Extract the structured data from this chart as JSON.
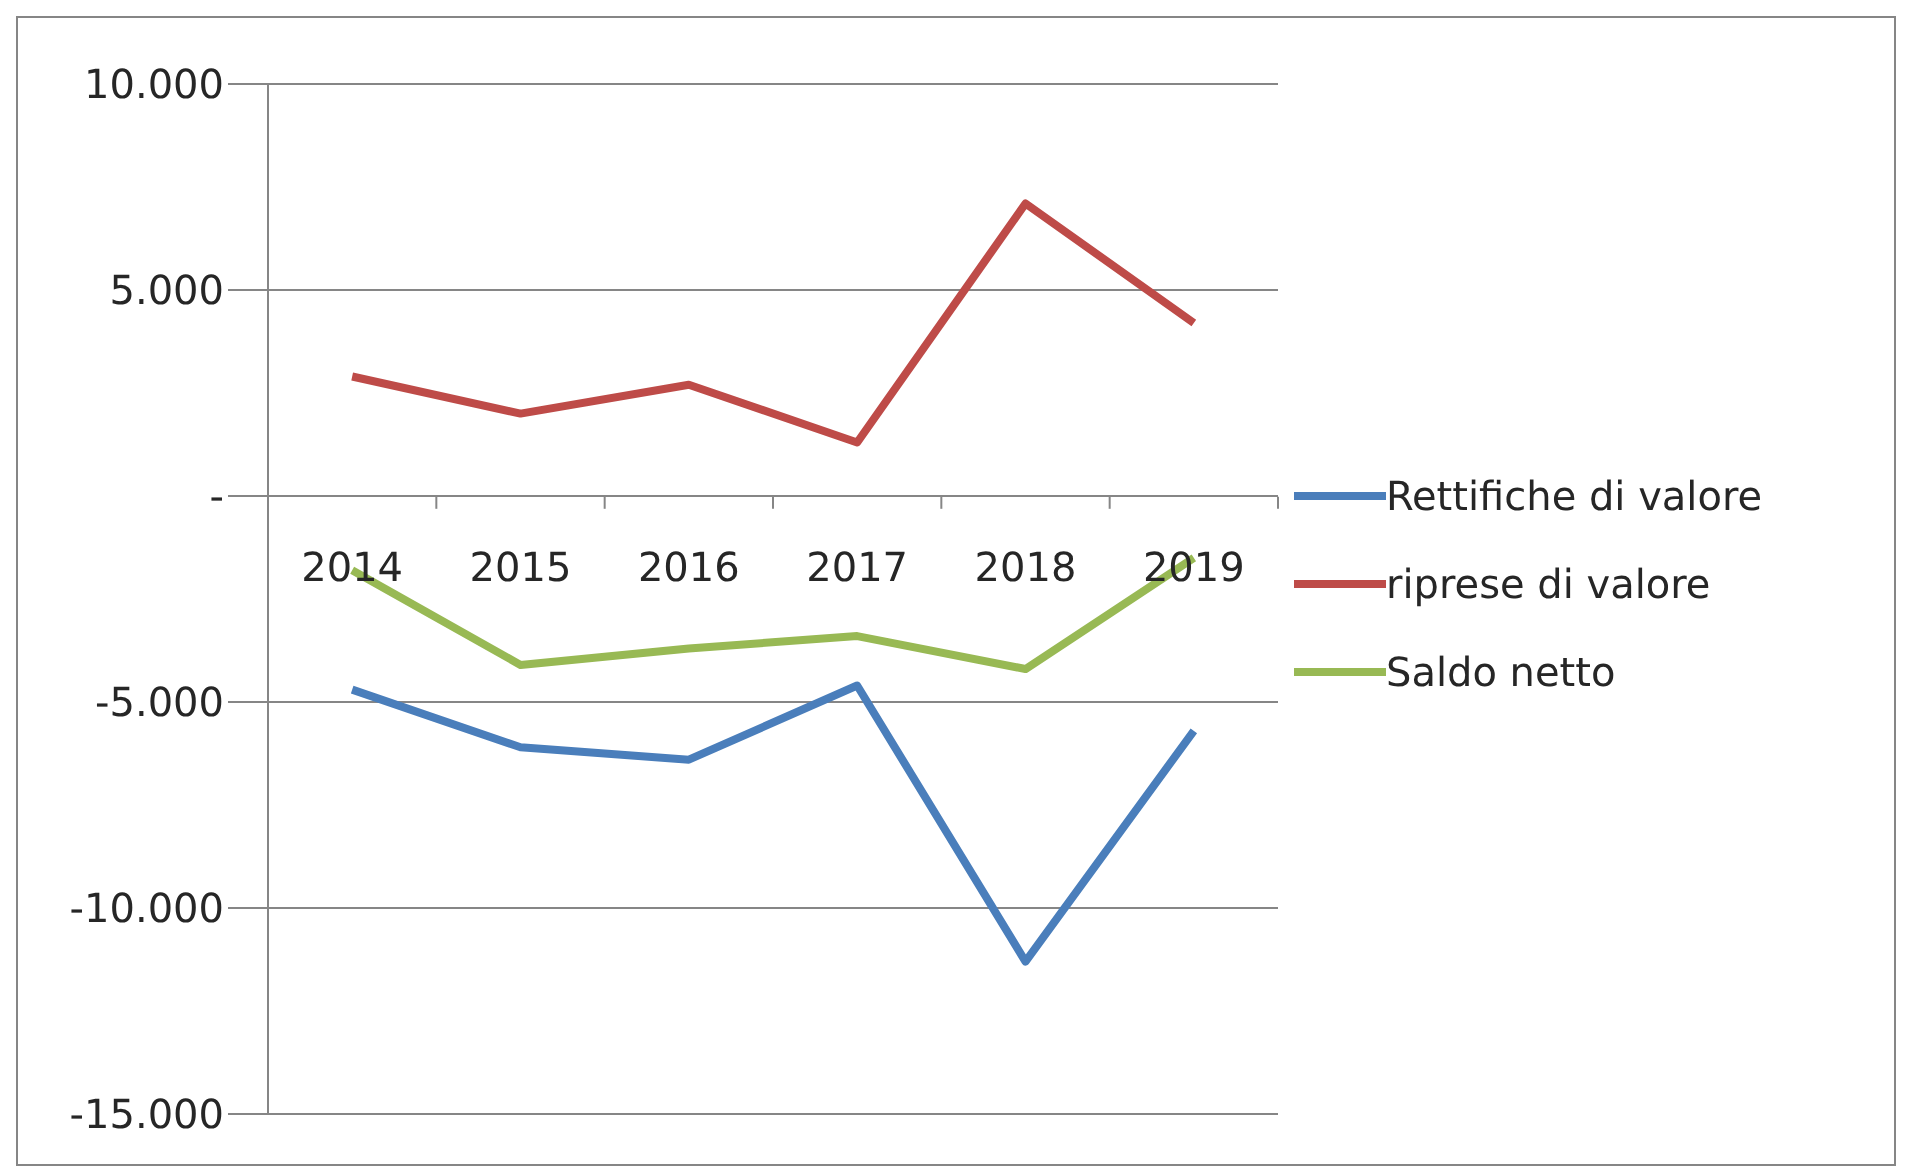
{
  "chart_data": {
    "type": "line",
    "categories": [
      "2014",
      "2015",
      "2016",
      "2017",
      "2018",
      "2019"
    ],
    "series": [
      {
        "name": "Rettifiche di valore",
        "color": "#4a7ebb",
        "values": [
          -4700,
          -6100,
          -6400,
          -4600,
          -11300,
          -5700
        ]
      },
      {
        "name": "riprese di valore",
        "color": "#be4b48",
        "values": [
          2900,
          2000,
          2700,
          1300,
          7100,
          4200
        ]
      },
      {
        "name": "Saldo netto",
        "color": "#98b954",
        "values": [
          -1800,
          -4100,
          -3700,
          -3400,
          -4200,
          -1500
        ]
      }
    ],
    "ylim": [
      -15000,
      10000
    ],
    "yticks": [
      {
        "value": -15000,
        "label": "-15.000"
      },
      {
        "value": -10000,
        "label": "-10.000"
      },
      {
        "value": -5000,
        "label": "-5.000"
      },
      {
        "value": 0,
        "label": "-"
      },
      {
        "value": 5000,
        "label": "5.000"
      },
      {
        "value": 10000,
        "label": "10.000"
      }
    ],
    "grid": "y",
    "legend": "right",
    "marker": "none",
    "line_style": "solid"
  }
}
